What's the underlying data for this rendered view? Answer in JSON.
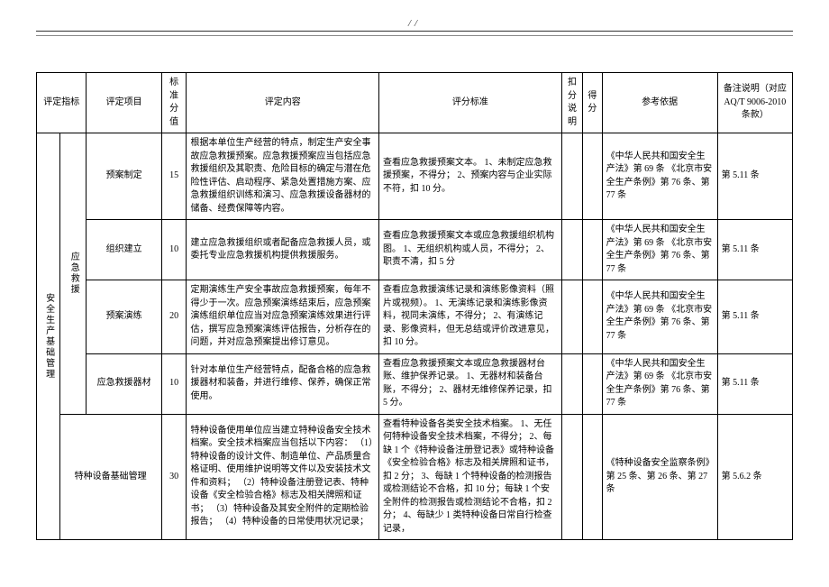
{
  "header_marker": "//",
  "headers": {
    "indicator": "评定指标",
    "item": "评定项目",
    "std_score": "标准分值",
    "content": "评定内容",
    "criteria": "评分标准",
    "deduct_note": "扣分说明",
    "score": "得分",
    "reference": "参考依据",
    "remark": "备注说明（对应 AQ/T 9006-2010 条款）"
  },
  "indicator_main": "安全生产基础管理",
  "group_emergency": "应急救援",
  "rows": [
    {
      "item": "预案制定",
      "score": "15",
      "content": "根据本单位生产经营的特点，制定生产安全事故应急救援预案。应急救援预案应当包括应急救援组织及其职责、危险目标的确定与潜在危险性评估、启动程序、紧急处置措施方案、应急救援组织训练和演习、应急救援设备器材的储备、经费保障等内容。",
      "criteria": "查看应急救援预案文本。\n1、未制定应急救援预案，不得分；\n2、预案内容与企业实际不符，扣 10 分。",
      "reference": "《中华人民共和国安全生产法》第 69 条\n《北京市安全生产条例》第 76 条、第 77 条",
      "remark": "第 5.11 条"
    },
    {
      "item": "组织建立",
      "score": "10",
      "content": "建立应急救援组织或者配备应急救援人员，或委托专业应急救援机构提供救援服务。",
      "criteria": "查看应急救援预案文本或应急救援组织机构图。\n1、无组织机构或人员，不得分；\n2、职责不清，扣 5 分",
      "reference": "《中华人民共和国安全生产法》第 69 条\n《北京市安全生产条例》第 76 条、第 77 条",
      "remark": "第 5.11 条"
    },
    {
      "item": "预案演练",
      "score": "20",
      "content": "定期演练生产安全事故应急救援预案，每年不得少于一次。应急预案演练结束后，应急预案演练组织单位应当对应急预案演练效果进行评估，撰写应急预案演练评估报告，分析存在的问题，并对应急预案提出修订意见。",
      "criteria": "查看应急救援演练记录和演练影像资料（照片或视频）。\n1、无演练记录和演练影像资料，视同未演练，不得分；\n2、有演练记录、影像资料，但无总结或评价改进意见，扣 10 分。",
      "reference": "《中华人民共和国安全生产法》第 69 条\n《北京市安全生产条例》第 76 条、第 77 条",
      "remark": "第 5.11 条"
    },
    {
      "item": "应急救援器材",
      "score": "10",
      "content": "针对本单位生产经营特点，配备合格的应急救援器材和装备，并进行维修、保养，确保正常使用。",
      "criteria": "查看应急救援预案文本或应急救援器材台账、维护保养记录。\n1、无器材和装备台账，不得分；\n2、器材无维修保养记录，扣 5 分。",
      "reference": "《中华人民共和国安全生产法》第 69 条\n《北京市安全生产条例》第 76 条、第 77 条",
      "remark": "第 5.11 条"
    },
    {
      "item": "特种设备基础管理",
      "score": "30",
      "content": "特种设备使用单位应当建立特种设备安全技术档案。安全技术档案应当包括以下内容：\n（1）特种设备的设计文件、制造单位、产品质量合格证明、使用维护说明等文件以及安装技术文件和资料；\n（2）特种设备注册登记表、特种设备《安全检验合格》标志及相关牌照和证书；\n（3）特种设备及其安全附件的定期检验报告；\n（4）特种设备的日常使用状况记录；",
      "criteria": "查看特种设备各类安全技术档案。\n1、无任何特种设备安全技术档案，不得分；\n2、每缺 1 个《特种设备注册登记表》或特种设备《安全检验合格》标志及相关牌照和证书，扣 2 分；\n3、每缺 1 个特种设备的检测报告或检测结论不合格，扣 10 分；每缺 1 个安全附件的检测报告或检测结论不合格，扣 2 分；\n4、每缺少 1 类特种设备日常自行检查记录，",
      "reference": "《特种设备安全监察条例》第 25 条、第 26 条、第 27 条",
      "remark": "第 5.6.2 条"
    }
  ]
}
